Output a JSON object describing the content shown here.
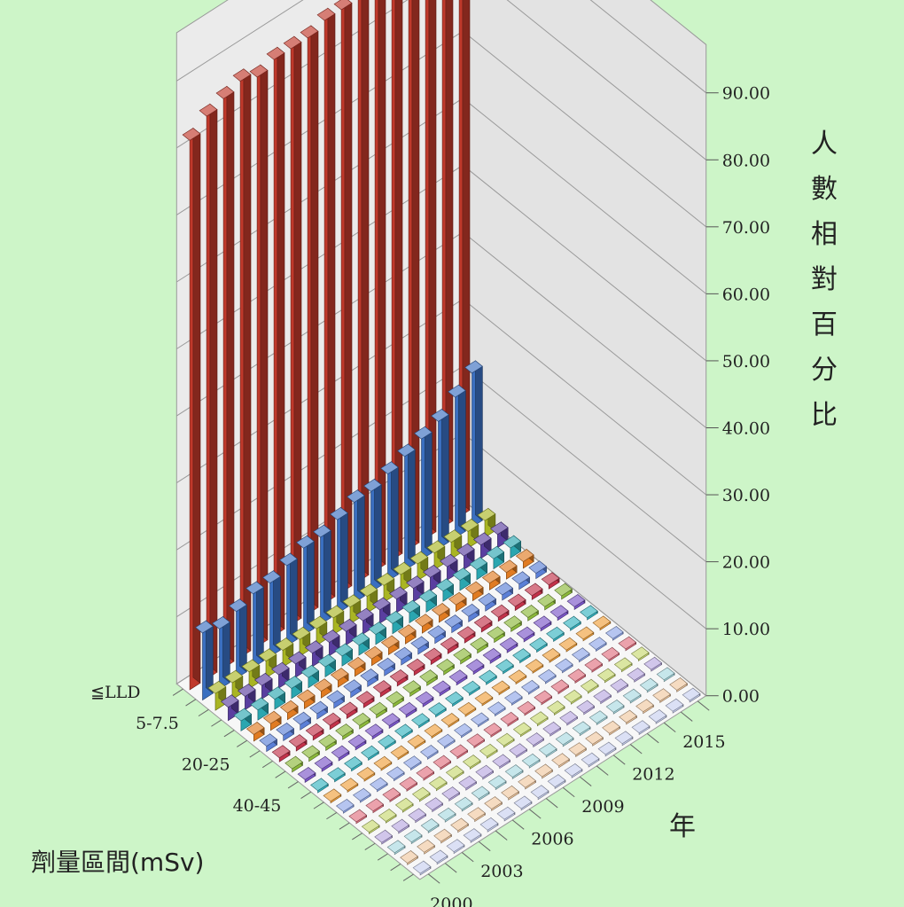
{
  "chart_data": {
    "type": "bar3d",
    "zlabel": "人數相對百分比",
    "xlabel": "劑量區間(mSv)",
    "ylabel": "年",
    "zlim": [
      0,
      90
    ],
    "z_ticks": [
      "0.00",
      "10.00",
      "20.00",
      "30.00",
      "40.00",
      "50.00",
      "60.00",
      "70.00",
      "80.00",
      "90.00"
    ],
    "dose_tick_labels": [
      "≦LLD",
      "5-7.5",
      "20-25",
      "40-45"
    ],
    "year_tick_labels": [
      "2000",
      "2003",
      "2006",
      "2009",
      "2012",
      "2015"
    ],
    "years": [
      2000,
      2001,
      2002,
      2003,
      2004,
      2005,
      2006,
      2007,
      2008,
      2009,
      2010,
      2011,
      2012,
      2013,
      2014,
      2015,
      2016
    ],
    "series": [
      {
        "name": "≦LLD",
        "color": "#c0392b",
        "values": [
          82,
          84,
          85,
          86,
          85,
          86,
          86,
          86,
          87,
          87,
          88,
          88,
          88,
          89,
          89,
          90,
          91
        ]
      },
      {
        "name": "",
        "color": "#3a6fc0",
        "values": [
          10,
          9,
          10,
          11,
          11,
          12,
          13,
          13,
          14,
          15,
          15,
          16,
          17,
          18,
          19,
          21,
          23
        ]
      },
      {
        "name": "",
        "color": "#a9b523",
        "values": [
          2.5,
          2.5,
          2.5,
          2.5,
          2.5,
          2.5,
          2.5,
          2.5,
          2.5,
          2.5,
          2.5,
          2.5,
          2.5,
          2.5,
          2.5,
          2.5,
          2.5
        ]
      },
      {
        "name": "",
        "color": "#5a3fa0",
        "values": [
          2,
          2,
          2,
          2,
          2,
          2,
          2,
          2,
          2,
          2,
          2,
          2,
          2,
          2,
          2,
          2,
          2
        ]
      },
      {
        "name": "",
        "color": "#2aa6b0",
        "values": [
          1.5,
          1.5,
          1.5,
          1.5,
          1.5,
          1.5,
          1.5,
          1.5,
          1.5,
          1.5,
          1.5,
          1.5,
          1.5,
          1.5,
          1.5,
          1.5,
          1.5
        ]
      },
      {
        "name": "",
        "color": "#e07b22",
        "values": [
          1,
          1,
          1,
          1,
          1,
          1,
          1,
          1,
          1,
          1,
          1,
          1,
          1,
          1,
          1,
          1,
          1
        ]
      },
      {
        "name": "",
        "color": "#5b7fd6",
        "values": [
          0.8,
          0.8,
          0.8,
          0.8,
          0.8,
          0.8,
          0.8,
          0.8,
          0.8,
          0.8,
          0.8,
          0.8,
          0.8,
          0.8,
          0.8,
          0.8,
          0.8
        ]
      },
      {
        "name": "",
        "color": "#c2324a",
        "values": [
          0.6,
          0.6,
          0.6,
          0.6,
          0.6,
          0.6,
          0.6,
          0.6,
          0.6,
          0.6,
          0.6,
          0.6,
          0.6,
          0.6,
          0.6,
          0.6,
          0.6
        ]
      },
      {
        "name": "",
        "color": "#8bb83a",
        "values": [
          0.5,
          0.5,
          0.5,
          0.5,
          0.5,
          0.5,
          0.5,
          0.5,
          0.5,
          0.5,
          0.5,
          0.5,
          0.5,
          0.5,
          0.5,
          0.5,
          0.5
        ]
      },
      {
        "name": "",
        "color": "#7a55c8",
        "values": [
          0.4,
          0.4,
          0.4,
          0.4,
          0.4,
          0.4,
          0.4,
          0.4,
          0.4,
          0.4,
          0.4,
          0.4,
          0.4,
          0.4,
          0.4,
          0.4,
          0.4
        ]
      },
      {
        "name": "",
        "color": "#35b3c0",
        "values": [
          0.3,
          0.3,
          0.3,
          0.3,
          0.3,
          0.3,
          0.3,
          0.3,
          0.3,
          0.3,
          0.3,
          0.3,
          0.3,
          0.3,
          0.3,
          0.3,
          0.3
        ]
      },
      {
        "name": "",
        "color": "#f0a03c",
        "values": [
          0.2,
          0.2,
          0.2,
          0.2,
          0.2,
          0.2,
          0.2,
          0.2,
          0.2,
          0.2,
          0.2,
          0.2,
          0.2,
          0.2,
          0.2,
          0.2,
          0.2
        ]
      },
      {
        "name": "",
        "color": "#8ea6e8",
        "values": [
          0.1,
          0.1,
          0.1,
          0.1,
          0.1,
          0.1,
          0.1,
          0.1,
          0.1,
          0.1,
          0.1,
          0.1,
          0.1,
          0.1,
          0.1,
          0.1,
          0.1
        ]
      },
      {
        "name": "",
        "color": "#e07080",
        "values": [
          0.1,
          0.1,
          0.1,
          0.1,
          0.1,
          0.1,
          0.1,
          0.1,
          0.1,
          0.1,
          0.1,
          0.1,
          0.1,
          0.1,
          0.1,
          0.1,
          0.1
        ]
      },
      {
        "name": "",
        "color": "#c8d870",
        "values": [
          0.05,
          0.05,
          0.05,
          0.05,
          0.05,
          0.05,
          0.05,
          0.05,
          0.05,
          0.05,
          0.05,
          0.05,
          0.05,
          0.05,
          0.05,
          0.05,
          0.05
        ]
      },
      {
        "name": "",
        "color": "#b8a8e0",
        "values": [
          0.05,
          0.05,
          0.05,
          0.05,
          0.05,
          0.05,
          0.05,
          0.05,
          0.05,
          0.05,
          0.05,
          0.05,
          0.05,
          0.05,
          0.05,
          0.05,
          0.05
        ]
      },
      {
        "name": "",
        "color": "#a8d8e0",
        "values": [
          0,
          0,
          0,
          0,
          0,
          0,
          0,
          0,
          0,
          0,
          0,
          0,
          0,
          0,
          0,
          0,
          0
        ]
      },
      {
        "name": "",
        "color": "#f0c8a0",
        "values": [
          0,
          0,
          0,
          0,
          0,
          0,
          0,
          0,
          0,
          0,
          0,
          0,
          0,
          0,
          0,
          0,
          0
        ]
      },
      {
        "name": "",
        "color": "#c8d0f0",
        "values": [
          0,
          0,
          0,
          0,
          0,
          0,
          0,
          0,
          0,
          0,
          0,
          0,
          0,
          0,
          0,
          0,
          0
        ]
      }
    ],
    "grid": true,
    "background": "#cdf5c8",
    "wall_color": "#ebebeb",
    "floor_color": "#f7f7f7"
  }
}
